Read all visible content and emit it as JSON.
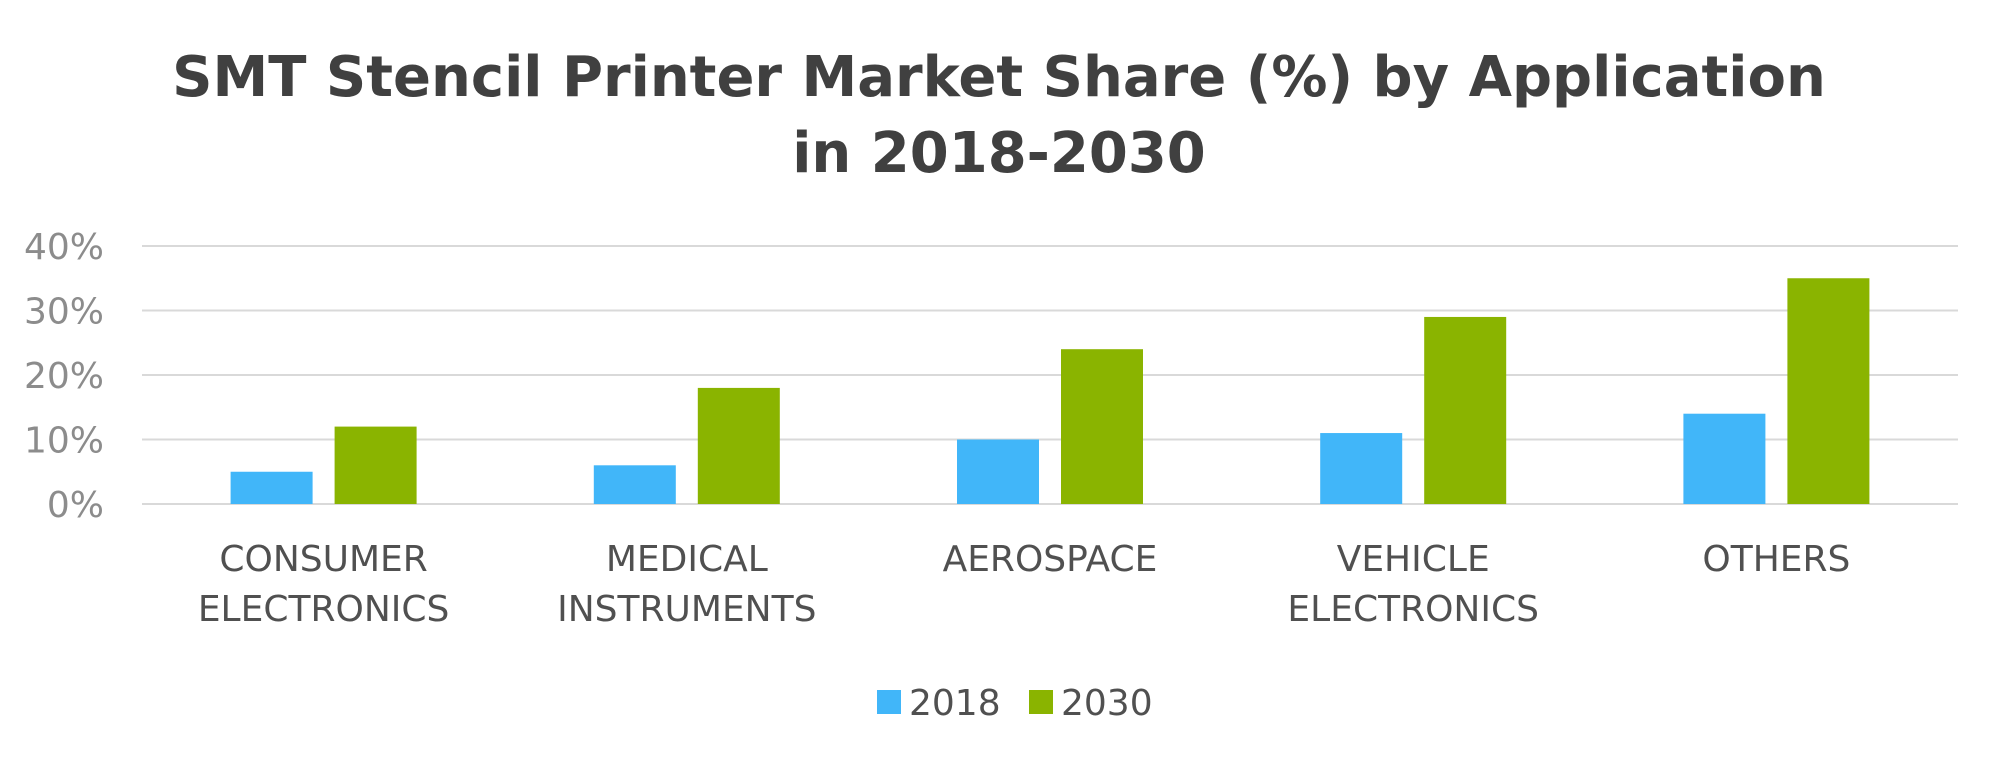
{
  "chart_data": {
    "type": "bar",
    "title": [
      "SMT Stencil Printer Market Share (%) by Application",
      "in 2018-2030"
    ],
    "categories": [
      [
        "CONSUMER",
        "ELECTRONICS"
      ],
      [
        "MEDICAL",
        "INSTRUMENTS"
      ],
      [
        "AEROSPACE"
      ],
      [
        "VEHICLE",
        "ELECTRONICS"
      ],
      [
        "OTHERS"
      ]
    ],
    "series": [
      {
        "name": "2018",
        "color": "#41b6f9",
        "values": [
          5,
          6,
          10,
          11,
          14
        ]
      },
      {
        "name": "2030",
        "color": "#8ab400",
        "values": [
          12,
          18,
          24,
          29,
          35
        ]
      }
    ],
    "y_ticks": [
      "0%",
      "10%",
      "20%",
      "30%",
      "40%"
    ],
    "ylim": [
      0,
      40
    ],
    "grid": true,
    "legend_position": "bottom-center"
  }
}
